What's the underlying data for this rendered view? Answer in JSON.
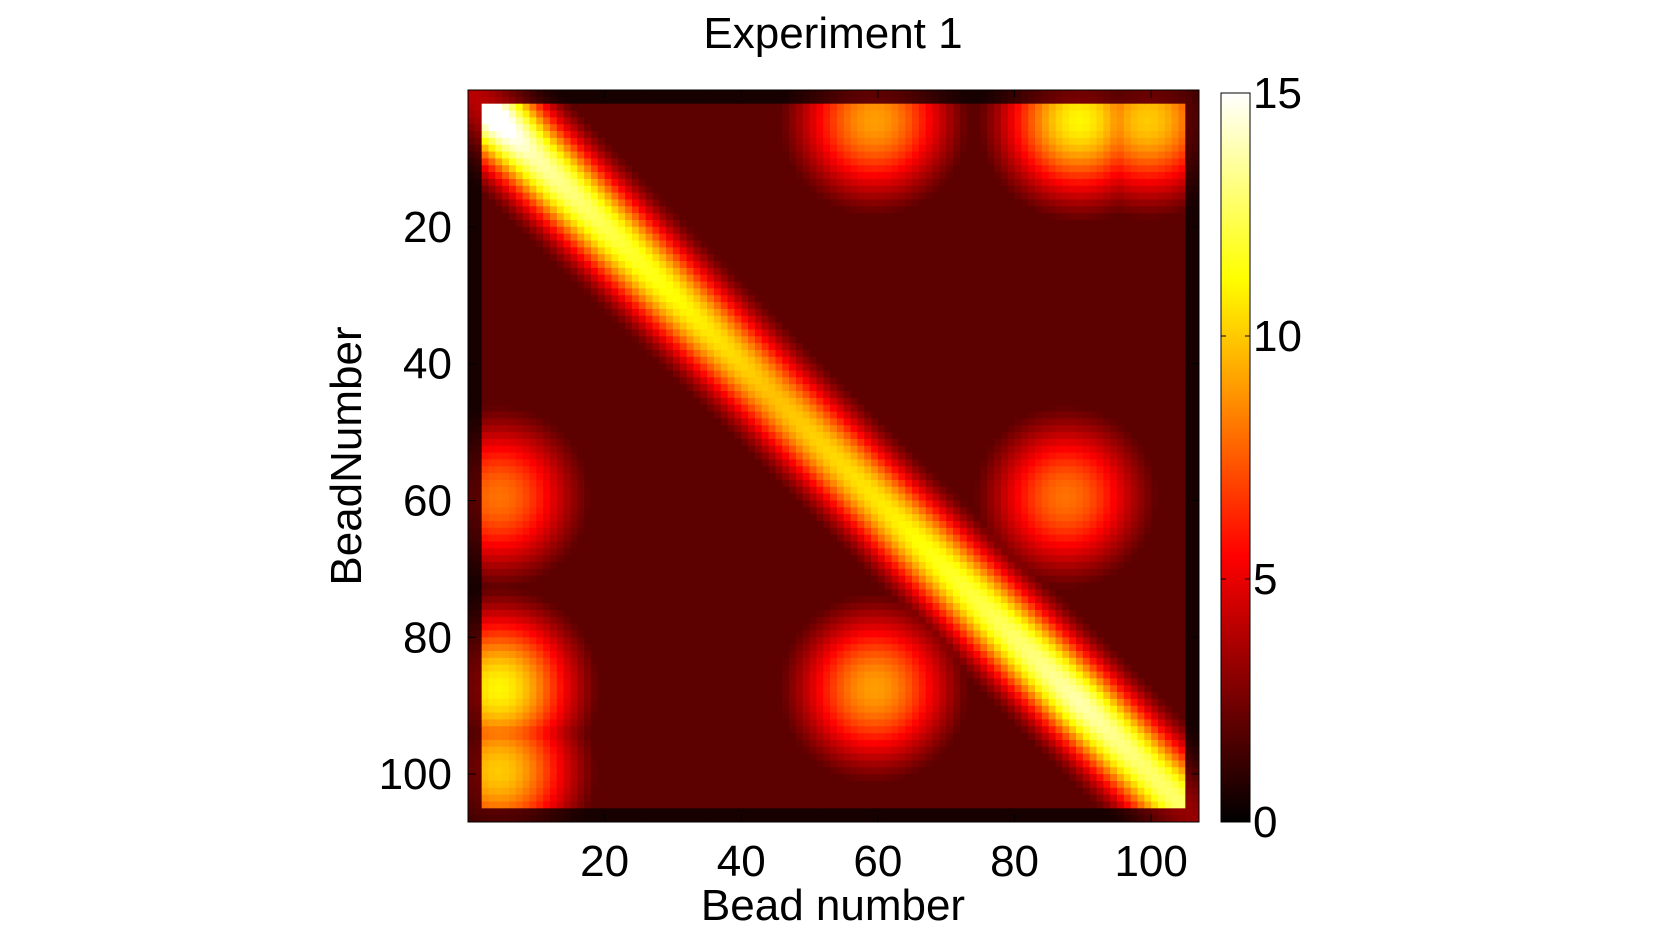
{
  "chart_data": {
    "type": "heatmap",
    "title": "Experiment 1",
    "xlabel": "Bead number",
    "ylabel": "BeadNumber",
    "xlim": [
      0,
      107
    ],
    "ylim": [
      0,
      107
    ],
    "y_reversed": true,
    "x_ticks": [
      20,
      40,
      60,
      80,
      100
    ],
    "y_ticks": [
      20,
      40,
      60,
      80,
      100
    ],
    "colorbar": {
      "colormap": "hot",
      "range": [
        0,
        15
      ],
      "ticks": [
        0,
        5,
        10,
        15
      ]
    },
    "grid": false,
    "features": {
      "background_level": 2,
      "diagonal_peaks": [
        {
          "x": 5,
          "y": 5,
          "value": 15
        },
        {
          "x": 10,
          "y": 10,
          "value": 13
        },
        {
          "x": 25,
          "y": 25,
          "value": 11
        },
        {
          "x": 45,
          "y": 45,
          "value": 9
        },
        {
          "x": 62,
          "y": 62,
          "value": 10
        },
        {
          "x": 90,
          "y": 90,
          "value": 13
        },
        {
          "x": 100,
          "y": 100,
          "value": 12
        }
      ],
      "off_diagonal_blobs": [
        {
          "x": 60,
          "y": 5,
          "value": 9
        },
        {
          "x": 90,
          "y": 5,
          "value": 11
        },
        {
          "x": 100,
          "y": 5,
          "value": 10
        },
        {
          "x": 5,
          "y": 60,
          "value": 8
        },
        {
          "x": 88,
          "y": 60,
          "value": 8
        },
        {
          "x": 5,
          "y": 88,
          "value": 11
        },
        {
          "x": 5,
          "y": 100,
          "value": 10
        },
        {
          "x": 60,
          "y": 88,
          "value": 9
        }
      ]
    }
  }
}
